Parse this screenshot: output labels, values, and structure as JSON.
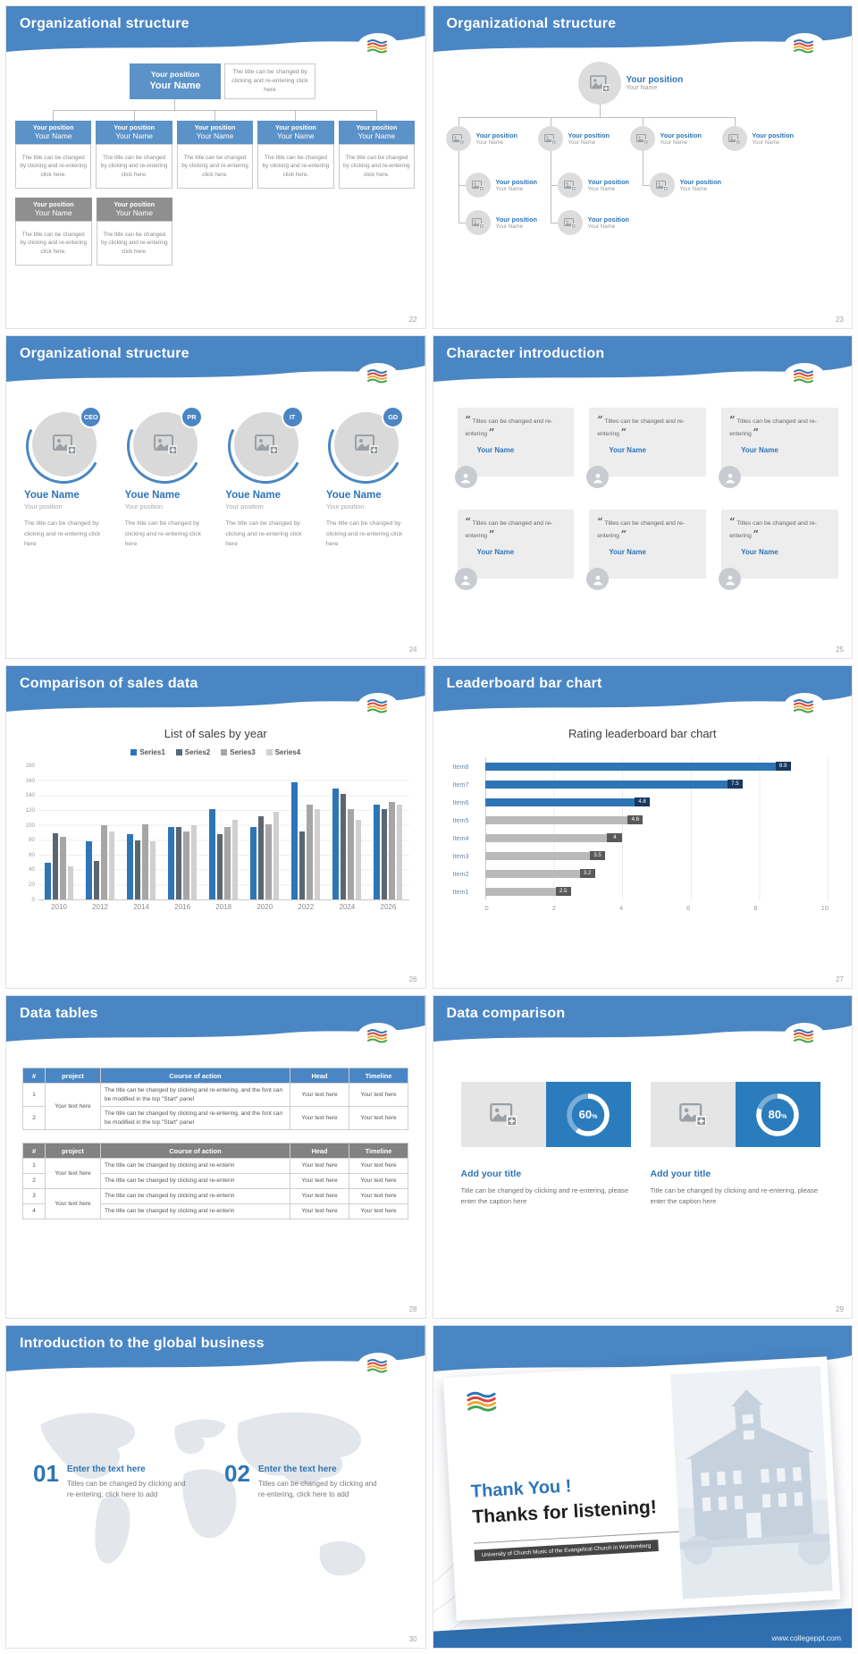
{
  "shared": {
    "your_position": "Your position",
    "your_name": "Your Name",
    "desc_click": "The title can be changed by clicking and re-entering click here",
    "desc_click_dot": "The title can be changed by clicking and re-entering click here.",
    "your_text_here": "Your text here",
    "percent_sign": "%",
    "quote_open": "“",
    "quote_close": "”"
  },
  "slides": {
    "s22": {
      "title": "Organizational structure",
      "page": "22"
    },
    "s23": {
      "title": "Organizational structure",
      "page": "23"
    },
    "s24": {
      "title": "Organizational structure",
      "page": "24",
      "people": [
        {
          "badge": "CEO",
          "name": "Youe Name",
          "position": "Your position"
        },
        {
          "badge": "PR",
          "name": "Youe Name",
          "position": "Your position"
        },
        {
          "badge": "IT",
          "name": "Youe Name",
          "position": "Your position"
        },
        {
          "badge": "GD",
          "name": "Youe Name",
          "position": "Your position"
        }
      ],
      "desc": "The title can be changed by clicking and re-entering click here"
    },
    "s25": {
      "title": "Character introduction",
      "page": "25",
      "card_text": "Titles can be changed and re-entering",
      "card_name": "Your Name"
    },
    "s26": {
      "title": "Comparison of sales data",
      "page": "26"
    },
    "s27": {
      "title": "Leaderboard bar chart",
      "page": "27"
    },
    "s28": {
      "title": "Data tables",
      "page": "28",
      "columns": [
        "#",
        "project",
        "Course of action",
        "Head",
        "Timeline"
      ],
      "table1": {
        "project": "Your text here",
        "rows": [
          {
            "num": "1",
            "course": "The title can be changed by clicking and re-entering, and the font can be modified in the top \"Start\" panel",
            "head": "Your text here",
            "timeline": "Your text here"
          },
          {
            "num": "2",
            "course": "The title can be changed by clicking and re-entering, and the font can be modified in the top \"Start\" panel",
            "head": "Your text here",
            "timeline": "Your text here"
          }
        ]
      },
      "table2": {
        "project1": "Your text here",
        "project2": "Your text here",
        "rows": [
          {
            "num": "1",
            "course": "The title can be changed by clicking and re-enterin",
            "head": "Your text here",
            "timeline": "Your text here"
          },
          {
            "num": "2",
            "course": "The title can be changed by clicking and re-enterin",
            "head": "Your text here",
            "timeline": "Your text here"
          },
          {
            "num": "3",
            "course": "The title can be changed by clicking and re-enterin",
            "head": "Your text here",
            "timeline": "Your text here"
          },
          {
            "num": "4",
            "course": "The title can be changed by clicking and re-enterin",
            "head": "Your text here",
            "timeline": "Your text here"
          }
        ]
      }
    },
    "s29": {
      "title": "Data comparison",
      "page": "29",
      "panels": [
        {
          "percent": "60",
          "heading": "Add your title",
          "caption": "Title can be changed by clicking and re-entering, please enter the caption here"
        },
        {
          "percent": "80",
          "heading": "Add your title",
          "caption": "Title can be changed by clicking and re-entering, please enter the caption here"
        }
      ]
    },
    "s30": {
      "title": "Introduction to the global business",
      "page": "30",
      "steps": [
        {
          "num": "01",
          "heading": "Enter the text here",
          "body": "Titles can be changed by clicking and re-entering, click here to add"
        },
        {
          "num": "02",
          "heading": "Enter the text here",
          "body": "Titles can be changed by clicking and re-entering, click here to add"
        }
      ]
    },
    "s31": {
      "thank_you": "Thank You !",
      "thanks": "Thanks for listening!",
      "subtitle": "University of Church Music of the Evangelical Church in Württemberg",
      "url": "www.collegeppt.com"
    }
  },
  "chart_data": [
    {
      "type": "bar",
      "title": "List of sales by year",
      "categories": [
        "2010",
        "2012",
        "2014",
        "2016",
        "2018",
        "2020",
        "2022",
        "2024",
        "2026"
      ],
      "series": [
        {
          "name": "Series1",
          "color": "#2e75b6",
          "values": [
            50,
            78,
            88,
            98,
            122,
            98,
            158,
            150,
            128
          ]
        },
        {
          "name": "Series2",
          "color": "#5b6670",
          "values": [
            90,
            52,
            80,
            98,
            88,
            112,
            92,
            142,
            122
          ]
        },
        {
          "name": "Series3",
          "color": "#a6a6a6",
          "values": [
            85,
            100,
            102,
            92,
            98,
            102,
            128,
            122,
            132
          ]
        },
        {
          "name": "Series4",
          "color": "#d0d0d0",
          "values": [
            45,
            92,
            78,
            100,
            108,
            118,
            122,
            108,
            128
          ]
        }
      ],
      "ylim": [
        0,
        180
      ],
      "ytick": 20,
      "legend_position": "top",
      "grid": true
    },
    {
      "type": "bar-horizontal",
      "title": "Rating leaderboard bar chart",
      "categories": [
        "Item8",
        "Item7",
        "Item6",
        "Item5",
        "Item4",
        "Item3",
        "Item2",
        "Item1"
      ],
      "values": [
        8.9,
        7.5,
        4.8,
        4.6,
        4,
        3.5,
        3.2,
        2.5
      ],
      "bar_colors": [
        "#2e75b6",
        "#2e75b6",
        "#2e75b6",
        "#b9b9b9",
        "#b9b9b9",
        "#b9b9b9",
        "#b9b9b9",
        "#b9b9b9"
      ],
      "chip_colors": [
        "#17375e",
        "#17375e",
        "#17375e",
        "#595959",
        "#595959",
        "#595959",
        "#595959",
        "#595959"
      ],
      "xlim": [
        0,
        10
      ],
      "xtick": 2,
      "grid": true
    }
  ]
}
